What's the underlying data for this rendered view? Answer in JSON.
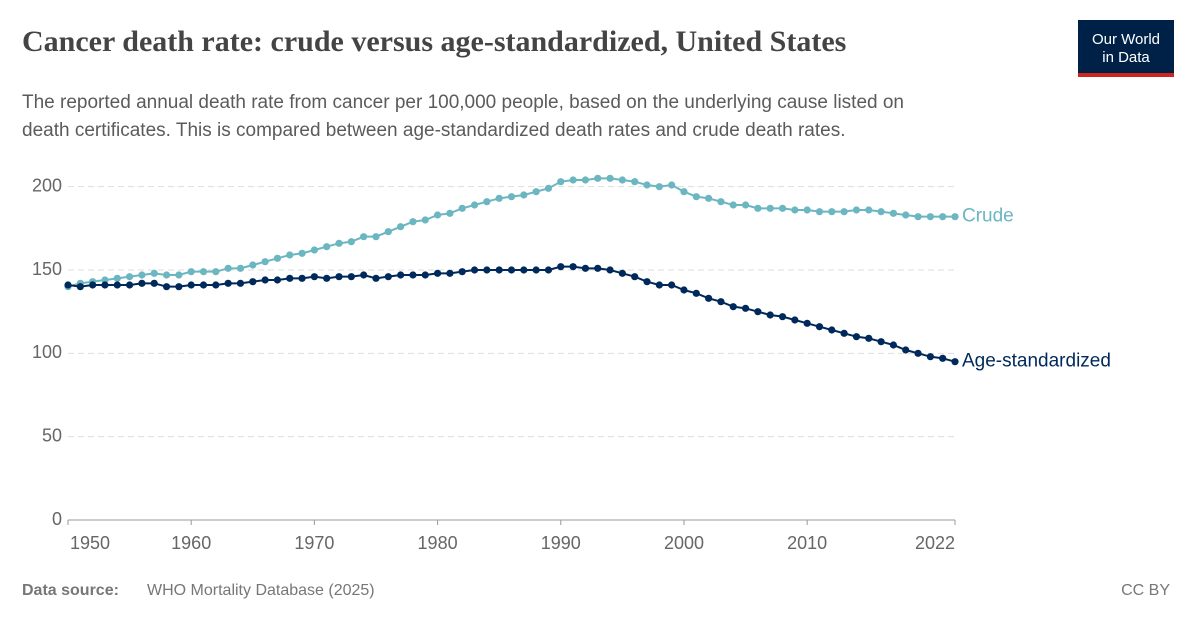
{
  "header": {
    "title": "Cancer death rate: crude versus age-standardized, United States",
    "subtitle_lines": [
      "The reported annual death rate from cancer per 100,000 people, based on the underlying cause listed on",
      "death certificates. This is compared between age-standardized death rates and crude death rates."
    ],
    "logo": [
      "Our World",
      "in Data"
    ]
  },
  "chart_data": {
    "type": "line",
    "x": [
      1950,
      1951,
      1952,
      1953,
      1954,
      1955,
      1956,
      1957,
      1958,
      1959,
      1960,
      1961,
      1962,
      1963,
      1964,
      1965,
      1966,
      1967,
      1968,
      1969,
      1970,
      1971,
      1972,
      1973,
      1974,
      1975,
      1976,
      1977,
      1978,
      1979,
      1980,
      1981,
      1982,
      1983,
      1984,
      1985,
      1986,
      1987,
      1988,
      1989,
      1990,
      1991,
      1992,
      1993,
      1994,
      1995,
      1996,
      1997,
      1998,
      1999,
      2000,
      2001,
      2002,
      2003,
      2004,
      2005,
      2006,
      2007,
      2008,
      2009,
      2010,
      2011,
      2012,
      2013,
      2014,
      2015,
      2016,
      2017,
      2018,
      2019,
      2020,
      2021,
      2022
    ],
    "series": [
      {
        "name": "Crude",
        "color": "#6bb6c0",
        "values": [
          140,
          142,
          143,
          144,
          145,
          146,
          147,
          148,
          147,
          147,
          149,
          149,
          149,
          151,
          151,
          153,
          155,
          157,
          159,
          160,
          162,
          164,
          166,
          167,
          170,
          170,
          173,
          176,
          179,
          180,
          183,
          184,
          187,
          189,
          191,
          193,
          194,
          195,
          197,
          199,
          203,
          204,
          204,
          205,
          205,
          204,
          203,
          201,
          200,
          201,
          197,
          194,
          193,
          191,
          189,
          189,
          187,
          187,
          187,
          186,
          186,
          185,
          185,
          185,
          186,
          186,
          185,
          184,
          183,
          182,
          182,
          182,
          182
        ]
      },
      {
        "name": "Age-standardized",
        "color": "#00295b",
        "values": [
          141,
          140,
          141,
          141,
          141,
          141,
          142,
          142,
          140,
          140,
          141,
          141,
          141,
          142,
          142,
          143,
          144,
          144,
          145,
          145,
          146,
          145,
          146,
          146,
          147,
          145,
          146,
          147,
          147,
          147,
          148,
          148,
          149,
          150,
          150,
          150,
          150,
          150,
          150,
          150,
          152,
          152,
          151,
          151,
          150,
          148,
          146,
          143,
          141,
          141,
          138,
          136,
          133,
          131,
          128,
          127,
          125,
          123,
          122,
          120,
          118,
          116,
          114,
          112,
          110,
          109,
          107,
          105,
          102,
          100,
          98,
          97,
          95
        ]
      }
    ],
    "xlim": [
      1950,
      2022
    ],
    "xticks": [
      1950,
      1960,
      1970,
      1980,
      1990,
      2000,
      2010,
      2022
    ],
    "ylim": [
      0,
      210
    ],
    "yticks": [
      0,
      50,
      100,
      150,
      200
    ],
    "grid": true
  },
  "footer": {
    "source_label": "Data source:",
    "source": "WHO Mortality Database (2025)",
    "license": "CC BY"
  }
}
